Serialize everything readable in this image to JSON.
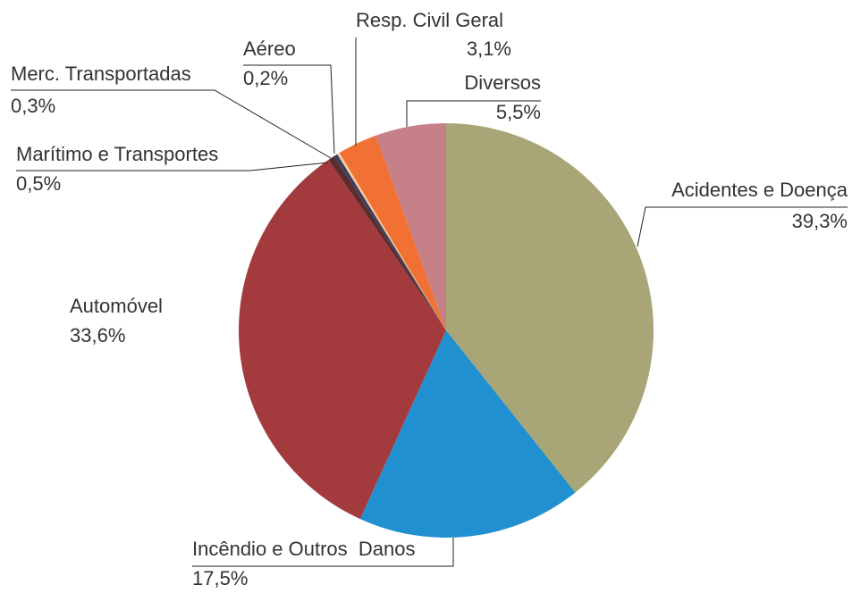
{
  "chart_data": {
    "type": "pie",
    "categories": [
      "Acidentes e Doença",
      "Incêndio e Outros  Danos",
      "Automóvel",
      "Marítimo e Transportes",
      "Merc. Transportadas",
      "Aéreo",
      "Resp. Civil Geral",
      "Diversos"
    ],
    "values": [
      39.3,
      17.5,
      33.6,
      0.5,
      0.3,
      0.2,
      3.1,
      5.5
    ],
    "value_labels": [
      "39,3%",
      "17,5%",
      "33,6%",
      "0,5%",
      "0,3%",
      "0,2%",
      "3,1%",
      "5,5%"
    ],
    "colors": [
      "#a8a677",
      "#2190d0",
      "#a33b3e",
      "#5b2c2e",
      "#3b3f5c",
      "#f6c9a3",
      "#f07133",
      "#c68087"
    ]
  }
}
